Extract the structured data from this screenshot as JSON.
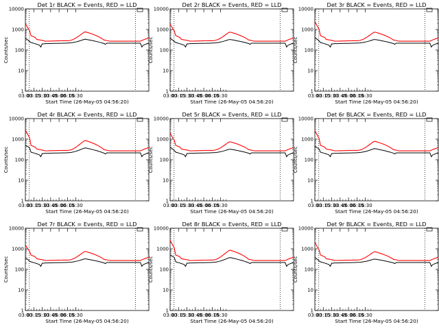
{
  "window": {
    "background": "#ffffff"
  },
  "colors": {
    "events": "#000000",
    "lld": "#ff0000",
    "axes": "#000000"
  },
  "chart_data": [
    {
      "type": "line",
      "title": "Det 1r BLACK = Events, RED = LLD",
      "xlabel": "Start Time (26-May-05 04:56:20)",
      "ylabel": "Counts/sec",
      "yscale": "log",
      "ylim": [
        1,
        10000
      ],
      "xlim": [
        "03:00",
        "06:40"
      ],
      "x_ticks": [
        "03:00",
        "03:15",
        "03:30",
        "03:45",
        "06:00",
        "06:15",
        "06:30"
      ],
      "y_ticks": [
        "1",
        "10",
        "100",
        "1000",
        "10000"
      ],
      "series": [],
      "lld_peak": 1500,
      "events_start": 380,
      "events_peak": 340
    },
    {
      "type": "line",
      "title": "Det 2r BLACK = Events, RED = LLD",
      "xlabel": "Start Time (26-May-05 04:56:20)",
      "ylabel": "Counts/sec",
      "yscale": "log",
      "ylim": [
        1,
        10000
      ],
      "xlim": [
        "03:00",
        "06:40"
      ],
      "x_ticks": [
        "03:00",
        "03:15",
        "03:30",
        "03:45",
        "06:00",
        "06:15",
        "06:30"
      ],
      "y_ticks": [
        "1",
        "10",
        "100",
        "1000",
        "10000"
      ],
      "series": [],
      "lld_peak": 1400,
      "events_start": 380,
      "events_peak": 330
    },
    {
      "type": "line",
      "title": "Det 3r BLACK = Events, RED = LLD",
      "xlabel": "Start Time (26-May-05 04:56:20)",
      "ylabel": "Counts/sec",
      "yscale": "log",
      "ylim": [
        1,
        10000
      ],
      "xlim": [
        "03:00",
        "06:40"
      ],
      "x_ticks": [
        "03:00",
        "03:15",
        "03:30",
        "03:45",
        "06:00",
        "06:15",
        "06:30"
      ],
      "y_ticks": [
        "1",
        "10",
        "100",
        "1000",
        "10000"
      ],
      "series": [],
      "lld_peak": 2000,
      "events_start": 400,
      "events_peak": 330
    },
    {
      "type": "line",
      "title": "Det 4r BLACK = Events, RED = LLD",
      "xlabel": "Start Time (26-May-05 04:56:20)",
      "ylabel": "Counts/sec",
      "yscale": "log",
      "ylim": [
        1,
        10000
      ],
      "xlim": [
        "03:00",
        "06:40"
      ],
      "x_ticks": [
        "03:00",
        "03:15",
        "03:30",
        "03:45",
        "06:00",
        "06:15",
        "06:30"
      ],
      "y_ticks": [
        "1",
        "10",
        "100",
        "1000",
        "10000"
      ],
      "series": [],
      "lld_peak": 2400,
      "events_start": 500,
      "events_peak": 380
    },
    {
      "type": "line",
      "title": "Det 5r BLACK = Events, RED = LLD",
      "xlabel": "Start Time (26-May-05 04:56:20)",
      "ylabel": "Counts/sec",
      "yscale": "log",
      "ylim": [
        1,
        10000
      ],
      "xlim": [
        "03:00",
        "06:40"
      ],
      "x_ticks": [
        "03:00",
        "03:15",
        "03:30",
        "03:45",
        "06:00",
        "06:15",
        "06:30"
      ],
      "y_ticks": [
        "1",
        "10",
        "100",
        "1000",
        "10000"
      ],
      "series": [],
      "lld_peak": 1500,
      "events_start": 400,
      "events_peak": 330
    },
    {
      "type": "line",
      "title": "Det 6r BLACK = Events, RED = LLD",
      "xlabel": "Start Time (26-May-05 04:56:20)",
      "ylabel": "Counts/sec",
      "yscale": "log",
      "ylim": [
        1,
        10000
      ],
      "xlim": [
        "03:00",
        "06:40"
      ],
      "x_ticks": [
        "03:00",
        "03:15",
        "03:30",
        "03:45",
        "06:00",
        "06:15",
        "06:30"
      ],
      "y_ticks": [
        "1",
        "10",
        "100",
        "1000",
        "10000"
      ],
      "series": [],
      "lld_peak": 2200,
      "events_start": 450,
      "events_peak": 350
    },
    {
      "type": "line",
      "title": "Det 7r BLACK = Events, RED = LLD",
      "xlabel": "Start Time (26-May-05 04:56:20)",
      "ylabel": "Counts/sec",
      "yscale": "log",
      "ylim": [
        1,
        10000
      ],
      "xlim": [
        "03:00",
        "06:40"
      ],
      "x_ticks": [
        "03:00",
        "03:15",
        "03:30",
        "03:45",
        "06:00",
        "06:15",
        "06:30"
      ],
      "y_ticks": [
        "1",
        "10",
        "100",
        "1000",
        "10000"
      ],
      "series": [],
      "lld_peak": 1100,
      "events_start": 370,
      "events_peak": 330
    },
    {
      "type": "line",
      "title": "Det 8r BLACK = Events, RED = LLD",
      "xlabel": "Start Time (26-May-05 04:56:20)",
      "ylabel": "Counts/sec",
      "yscale": "log",
      "ylim": [
        1,
        10000
      ],
      "xlim": [
        "03:00",
        "06:40"
      ],
      "x_ticks": [
        "03:00",
        "03:15",
        "03:30",
        "03:45",
        "06:00",
        "06:15",
        "06:30"
      ],
      "y_ticks": [
        "1",
        "10",
        "100",
        "1000",
        "10000"
      ],
      "series": [],
      "lld_peak": 2200,
      "events_start": 500,
      "events_peak": 380
    },
    {
      "type": "line",
      "title": "Det 9r BLACK = Events, RED = LLD",
      "xlabel": "Start Time (26-May-05 04:56:20)",
      "ylabel": "Counts/sec",
      "yscale": "log",
      "ylim": [
        1,
        10000
      ],
      "xlim": [
        "03:00",
        "06:40"
      ],
      "x_ticks": [
        "03:00",
        "03:15",
        "03:30",
        "03:45",
        "06:00",
        "06:15",
        "06:30"
      ],
      "y_ticks": [
        "1",
        "10",
        "100",
        "1000",
        "10000"
      ],
      "series": [],
      "lld_peak": 1600,
      "events_start": 380,
      "events_peak": 320
    }
  ]
}
